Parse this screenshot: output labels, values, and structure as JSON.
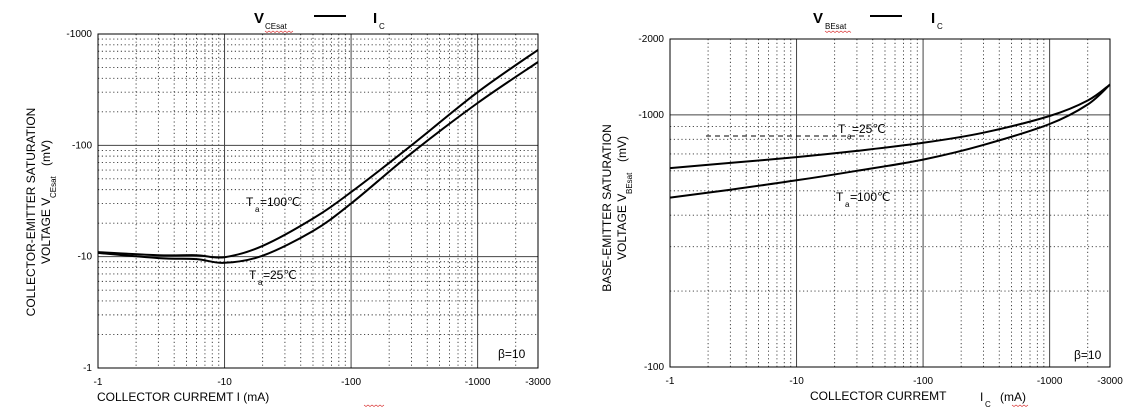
{
  "chart_data": [
    {
      "type": "line",
      "title": {
        "main": "V",
        "main_sub": "CEsat",
        "sep": "—",
        "vs": "I",
        "vs_sub": "C"
      },
      "ylabel": {
        "line1": "COLLECTOR-EMITTER SATURATION",
        "line2": "VOLTAGE   V",
        "sub": "CEsat",
        "unit": "(mV)"
      },
      "xlabel": {
        "text": "COLLECTOR CURREMT I (mA)"
      },
      "x_scale": "log",
      "y_scale": "log",
      "xlim": [
        -1,
        -3000
      ],
      "ylim": [
        -1,
        -1000
      ],
      "x_ticks": [
        "-1",
        "-10",
        "-100",
        "-1000",
        "-3000"
      ],
      "y_ticks": [
        "-1000",
        "-100",
        "-10",
        "-1"
      ],
      "grid": true,
      "note": "β=10",
      "series": [
        {
          "name": "Ta=100℃",
          "label": {
            "T": "T",
            "a": "a",
            "rest": "=100℃"
          },
          "x": [
            -1,
            -3,
            -6,
            -10,
            -20,
            -50,
            -100,
            -300,
            -1000,
            -3000
          ],
          "y": [
            -11,
            -10.3,
            -10.3,
            -9.9,
            -12.5,
            -22,
            -38,
            -100,
            -300,
            -720
          ]
        },
        {
          "name": "Ta=25℃",
          "label": {
            "T": "T",
            "a": "a",
            "rest": "=25℃"
          },
          "x": [
            -1,
            -3,
            -6,
            -10,
            -20,
            -50,
            -100,
            -300,
            -1000,
            -3000
          ],
          "y": [
            -10.8,
            -9.7,
            -9.5,
            -8.8,
            -10.2,
            -17,
            -30,
            -85,
            -240,
            -560
          ]
        }
      ]
    },
    {
      "type": "line",
      "title": {
        "main": "V",
        "main_sub": "BEsat",
        "sep": "—",
        "vs": "I",
        "vs_sub": "C"
      },
      "ylabel": {
        "line1": "BASE-EMITTER SATURATION",
        "line2": "VOLTAGE   V",
        "sub": "BEsat",
        "unit": "(mV)"
      },
      "xlabel": {
        "text": "COLLECTOR CURREMT",
        "var": "I",
        "var_sub": "C",
        "unit": "(mA)"
      },
      "x_scale": "log",
      "y_scale": "log",
      "xlim": [
        -1,
        -3000
      ],
      "ylim": [
        -100,
        -2000
      ],
      "x_ticks": [
        "-1",
        "-10",
        "-100",
        "-1000",
        "-3000"
      ],
      "y_ticks": [
        "-2000",
        "-1000",
        "-100"
      ],
      "grid": true,
      "note": "β=10",
      "series": [
        {
          "name": "Ta=25℃",
          "label": {
            "T": "T",
            "a": "a",
            "rest": "=25℃"
          },
          "x": [
            -1,
            -3,
            -10,
            -30,
            -100,
            -300,
            -1000,
            -2000,
            -3000
          ],
          "y": [
            -615,
            -645,
            -680,
            -720,
            -775,
            -850,
            -990,
            -1140,
            -1320
          ]
        },
        {
          "name": "Ta=100℃",
          "label": {
            "T": "T",
            "a": "a",
            "rest": "=100℃"
          },
          "x": [
            -1,
            -3,
            -10,
            -30,
            -100,
            -300,
            -1000,
            -2000,
            -3000
          ],
          "y": [
            -470,
            -505,
            -550,
            -600,
            -665,
            -760,
            -920,
            -1100,
            -1320
          ]
        }
      ]
    }
  ]
}
